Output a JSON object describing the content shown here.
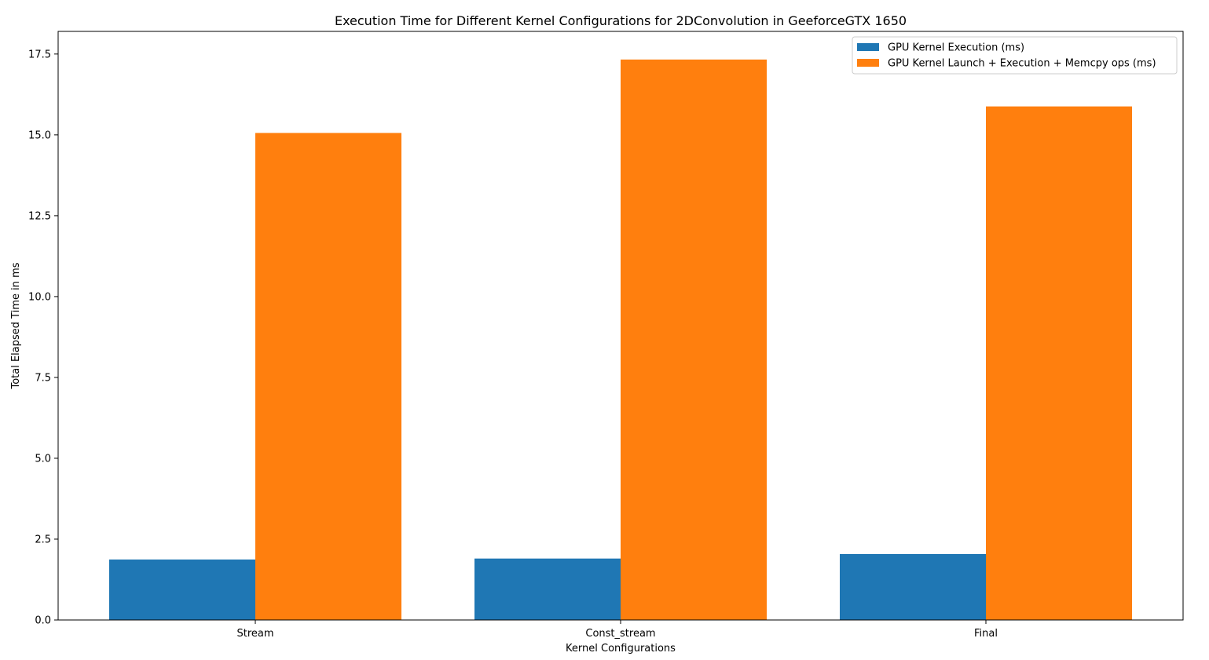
{
  "chart_data": {
    "type": "bar",
    "title": "Execution Time for Different Kernel Configurations for 2DConvolution in GeeforceGTX 1650",
    "xlabel": "Kernel Configurations",
    "ylabel": "Total Elapsed Time in ms",
    "categories": [
      "Stream",
      "Const_stream",
      "Final"
    ],
    "series": [
      {
        "name": "GPU Kernel Execution (ms)",
        "color": "#1f77b4",
        "values": [
          1.87,
          1.9,
          2.04
        ]
      },
      {
        "name": "GPU Kernel Launch + Execution + Memcpy ops (ms)",
        "color": "#ff7f0e",
        "values": [
          15.06,
          17.33,
          15.88
        ]
      }
    ],
    "ylim": [
      0,
      18.2
    ],
    "yticks": [
      0.0,
      2.5,
      5.0,
      7.5,
      10.0,
      12.5,
      15.0,
      17.5
    ],
    "ytick_labels": [
      "0.0",
      "2.5",
      "5.0",
      "7.5",
      "10.0",
      "12.5",
      "15.0",
      "17.5"
    ],
    "legend_position": "top-right",
    "grid": false
  }
}
